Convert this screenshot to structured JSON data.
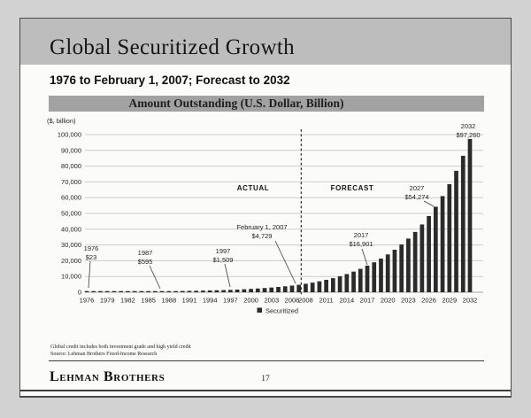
{
  "page": {
    "background_color": "#d2d2d2",
    "slide_background": "#fbfbfa"
  },
  "header": {
    "title": "Global Securitized Growth",
    "band_color": "#bdbdbd"
  },
  "subtitle": "1976 to February 1, 2007; Forecast to 2032",
  "chart_data": {
    "type": "bar",
    "title": "Amount Outstanding (U.S. Dollar, Billion)",
    "title_band_color": "#a2a2a2",
    "unit_label": "($, billion)",
    "ylim": [
      0,
      100000
    ],
    "yticks": [
      0,
      10000,
      20000,
      30000,
      40000,
      50000,
      60000,
      70000,
      80000,
      90000,
      100000
    ],
    "xtick_years": [
      1976,
      1979,
      1982,
      1985,
      1988,
      1991,
      1994,
      1997,
      2000,
      2003,
      2006,
      2008,
      2011,
      2014,
      2017,
      2020,
      2023,
      2026,
      2029,
      2032
    ],
    "grid": true,
    "bar_color": "#2b2b2b",
    "legend": {
      "position": "bottom",
      "entries": [
        {
          "label": "Securitized",
          "color": "#2b2b2b"
        }
      ]
    },
    "region_labels": [
      {
        "text": "ACTUAL",
        "side": "actual"
      },
      {
        "text": "FORECAST",
        "side": "forecast"
      }
    ],
    "divider": {
      "year": 2007,
      "style": "dashed"
    },
    "years": [
      1976,
      1977,
      1978,
      1979,
      1980,
      1981,
      1982,
      1983,
      1984,
      1985,
      1986,
      1987,
      1988,
      1989,
      1990,
      1991,
      1992,
      1993,
      1994,
      1995,
      1996,
      1997,
      1998,
      1999,
      2000,
      2001,
      2002,
      2003,
      2004,
      2005,
      2006,
      2007,
      2008,
      2009,
      2010,
      2011,
      2012,
      2013,
      2014,
      2015,
      2016,
      2017,
      2018,
      2019,
      2020,
      2021,
      2022,
      2023,
      2024,
      2025,
      2026,
      2027,
      2028,
      2029,
      2030,
      2031,
      2032
    ],
    "values": [
      23,
      31,
      42,
      56,
      75,
      101,
      136,
      182,
      245,
      330,
      443,
      595,
      653,
      717,
      787,
      863,
      948,
      1040,
      1141,
      1253,
      1375,
      1509,
      1692,
      1897,
      2126,
      2383,
      2672,
      2995,
      3357,
      3763,
      4219,
      4729,
      5371,
      6100,
      6929,
      7870,
      8939,
      10153,
      11532,
      13098,
      14878,
      16901,
      18993,
      21344,
      23986,
      26955,
      30292,
      34042,
      38256,
      42992,
      48314,
      54274,
      60993,
      68544,
      77029,
      86565,
      97260
    ],
    "annotations": [
      {
        "year": 1976,
        "line1": "1976",
        "line2": "$23"
      },
      {
        "year": 1987,
        "line1": "1987",
        "line2": "$595"
      },
      {
        "year": 1997,
        "line1": "1997",
        "line2": "$1,509"
      },
      {
        "year": 2007,
        "line1": "February 1, 2007",
        "line2": "$4,729"
      },
      {
        "year": 2017,
        "line1": "2017",
        "line2": "$16,901"
      },
      {
        "year": 2027,
        "line1": "2027",
        "line2": "$54,274"
      },
      {
        "year": 2032,
        "line1": "2032",
        "line2": "$97,260"
      }
    ]
  },
  "footnotes": [
    "Global credit includes both investment grade and high yield credit",
    "Source:  Lehman Brothers Fixed-Income Research"
  ],
  "footer": {
    "brand": "Lehman Brothers",
    "page_number": "17"
  }
}
